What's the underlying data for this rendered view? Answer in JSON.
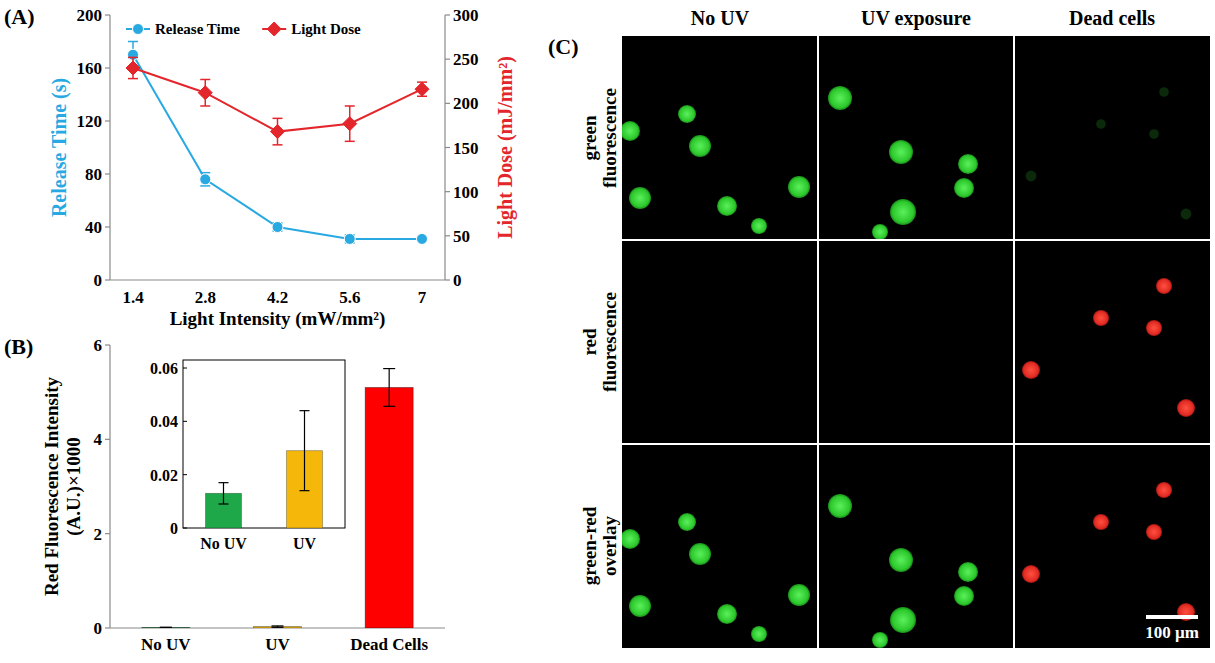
{
  "chart_data": [
    {
      "type": "line",
      "panel_label": "(A)",
      "x_label": "Light Intensity (mW/mm²)",
      "y_label": "Release Time (s)",
      "y2_label": "Light Dose (mJ/mm²)",
      "categories": [
        "1.4",
        "2.8",
        "4.2",
        "5.6",
        "7"
      ],
      "series": [
        {
          "name": "Release Time",
          "color": "#29a9e1",
          "marker": "circle",
          "values": [
            170,
            76,
            40,
            31,
            31
          ],
          "errors": [
            10,
            5,
            3,
            3,
            1
          ]
        },
        {
          "name": "Light Dose",
          "color": "#e3262c",
          "marker": "diamond",
          "axis": "y2",
          "values": [
            240,
            212,
            168,
            177,
            216
          ],
          "errors": [
            12,
            15,
            15,
            20,
            8
          ]
        }
      ],
      "ylim": [
        0,
        200
      ],
      "yticks": [
        0,
        40,
        80,
        120,
        160,
        200
      ],
      "y2lim": [
        0,
        300
      ],
      "y2ticks": [
        0,
        50,
        100,
        150,
        200,
        250,
        300
      ],
      "legend": "top"
    },
    {
      "type": "bar",
      "panel_label": "(B)",
      "y_label": "Red Fluorescence Intensity (A.U.)×1000",
      "categories": [
        "No UV",
        "UV",
        "Dead Cells"
      ],
      "values": [
        0.013,
        0.029,
        5.1
      ],
      "errors": [
        0.004,
        0.015,
        0.4
      ],
      "colors": [
        "#1fa84a",
        "#f5b70a",
        "#ff0000"
      ],
      "ylim": [
        0,
        6
      ],
      "yticks": [
        0,
        2,
        4,
        6
      ]
    },
    {
      "type": "bar",
      "categories": [
        "No UV",
        "UV"
      ],
      "values": [
        0.013,
        0.029
      ],
      "errors": [
        0.004,
        0.015
      ],
      "colors": [
        "#1fa84a",
        "#f5b70a"
      ],
      "ylim": [
        0,
        0.06
      ],
      "yticks": [
        0,
        0.02,
        0.04,
        0.06
      ]
    }
  ],
  "micrographs": {
    "panel_label": "(C)",
    "columns": [
      "No UV",
      "UV exposure",
      "Dead cells"
    ],
    "rows": [
      "green fluorescence",
      "red fluorescence",
      "green-red overlay"
    ],
    "scale_bar": "100 µm"
  }
}
